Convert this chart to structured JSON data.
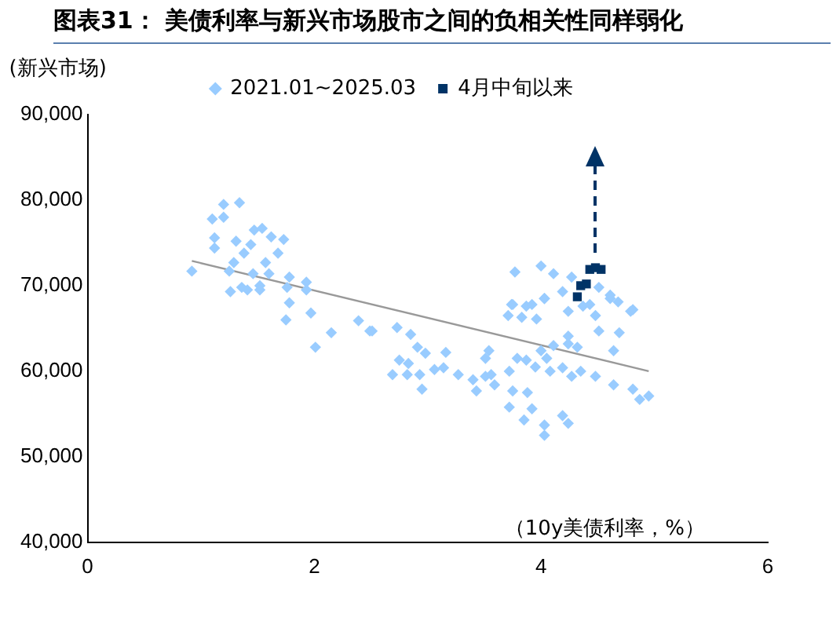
{
  "chart_data": {
    "type": "scatter",
    "title": "图表31：  美债利率与新兴市场股市之间的负相关性同样弱化",
    "ylabel": "(新兴市场)",
    "xlabel": "（10y美债利率，%）",
    "xlim": [
      0,
      6
    ],
    "xticks": [
      0,
      2,
      4,
      6
    ],
    "ylim": [
      40000,
      90000
    ],
    "yticks": [
      {
        "value": 40000,
        "label": "40,000"
      },
      {
        "value": 50000,
        "label": "50,000"
      },
      {
        "value": 60000,
        "label": "60,000"
      },
      {
        "value": 70000,
        "label": "70,000"
      },
      {
        "value": 80000,
        "label": "80,000"
      },
      {
        "value": 90000,
        "label": "90,000"
      }
    ],
    "grid": false,
    "legend": "top",
    "series": [
      {
        "name": "2021.01~2025.03",
        "color": "#99ccff",
        "marker": "diamond",
        "x": [
          1.2,
          1.34,
          1.1,
          1.2,
          1.12,
          1.12,
          1.31,
          1.47,
          1.54,
          1.62,
          1.73,
          1.44,
          1.38,
          1.68,
          1.29,
          1.57,
          0.92,
          1.25,
          1.46,
          1.6,
          1.78,
          1.36,
          1.52,
          1.26,
          1.41,
          1.52,
          1.76,
          1.93,
          1.93,
          1.78,
          1.97,
          1.75,
          2.15,
          2.39,
          2.49,
          2.01,
          2.51,
          2.73,
          2.85,
          2.91,
          2.98,
          3.16,
          2.75,
          2.83,
          2.69,
          2.82,
          2.93,
          3.06,
          3.14,
          2.95,
          3.27,
          3.4,
          3.51,
          3.54,
          3.51,
          3.56,
          3.43,
          3.59,
          3.72,
          3.79,
          3.87,
          3.95,
          4.05,
          3.75,
          3.88,
          3.72,
          3.85,
          3.92,
          4.03,
          4.03,
          4.19,
          4.24,
          4.08,
          4.19,
          4.35,
          4.27,
          4.48,
          4.64,
          4.81,
          4.87,
          4.95,
          4.64,
          4.24,
          4.32,
          4.11,
          4.0,
          4.24,
          4.69,
          3.74,
          3.87,
          3.71,
          3.83,
          3.96,
          4.03,
          4.24,
          4.37,
          4.48,
          4.51,
          4.61,
          4.79,
          3.77,
          4.0,
          4.11,
          4.27,
          4.19,
          4.03,
          3.75,
          3.92,
          4.43,
          4.61,
          4.68,
          4.81,
          4.51
        ],
        "values": [
          79500,
          79700,
          77800,
          78000,
          75600,
          74400,
          75200,
          76500,
          76700,
          75700,
          75400,
          74800,
          73800,
          73800,
          72700,
          72700,
          71700,
          71700,
          71400,
          71400,
          71000,
          69800,
          70000,
          69300,
          69500,
          69500,
          69800,
          70400,
          69500,
          68000,
          66800,
          66000,
          64500,
          65900,
          64700,
          62800,
          64700,
          65100,
          64300,
          62800,
          62100,
          62200,
          61300,
          60900,
          59600,
          59600,
          59600,
          60200,
          60400,
          57900,
          59600,
          59000,
          61500,
          62400,
          59400,
          59600,
          57700,
          58400,
          60000,
          61500,
          61300,
          60500,
          61500,
          57700,
          57500,
          55800,
          54300,
          55600,
          53700,
          52500,
          54800,
          53900,
          60000,
          60400,
          60000,
          59400,
          59400,
          58400,
          57900,
          56700,
          57100,
          62400,
          63200,
          62800,
          63000,
          62400,
          64100,
          64500,
          67800,
          67600,
          66500,
          66300,
          66100,
          68500,
          67000,
          67600,
          66500,
          64700,
          68500,
          67000,
          71600,
          72300,
          71400,
          71000,
          69300,
          68500,
          67800,
          67800,
          67800,
          68900,
          68100,
          67200,
          69800
        ]
      },
      {
        "name": "4月中旬以来",
        "color": "#003366",
        "marker": "square",
        "x": [
          4.32,
          4.35,
          4.4,
          4.43,
          4.48,
          4.53
        ],
        "values": [
          68700,
          70000,
          70200,
          71900,
          72100,
          71900
        ]
      },
      {
        "type": "line",
        "color": "#999999",
        "marker": "none",
        "x": [
          0.92,
          4.95
        ],
        "values": [
          72900,
          60000
        ]
      }
    ]
  }
}
